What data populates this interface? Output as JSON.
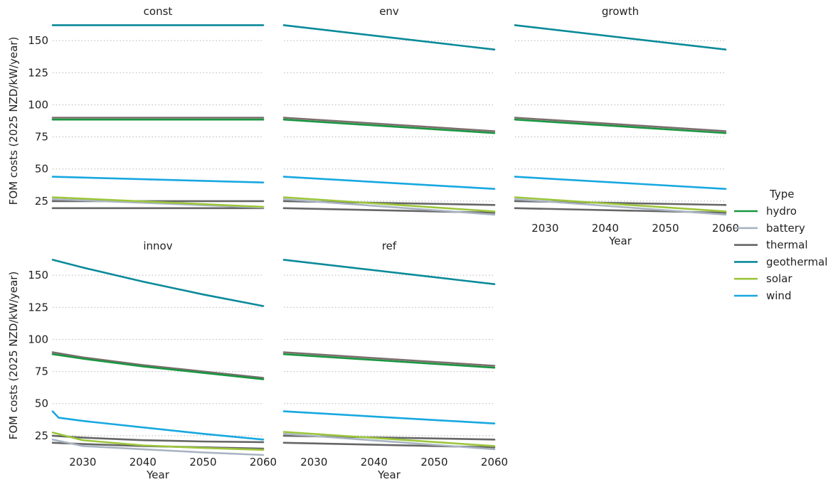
{
  "chart_data": {
    "type": "line",
    "facet_variable": "scenario",
    "ylabel": "FOM costs (2025 NZD/kW/year)",
    "xlabel": "Year",
    "xlim": [
      2025,
      2060
    ],
    "ylim": [
      10,
      165
    ],
    "x_ticks": [
      2030,
      2040,
      2050,
      2060
    ],
    "y_ticks": [
      25,
      50,
      75,
      100,
      125,
      150
    ],
    "grid": "horizontal-dotted",
    "legend": {
      "title": "Type",
      "placement": "right",
      "entries": [
        "hydro",
        "battery",
        "thermal",
        "geothermal",
        "solar",
        "wind"
      ]
    },
    "colors": {
      "hydro": "#1a9641",
      "battery": "#a9b4c2",
      "thermal": "#666666",
      "thermal_high": "#7d6d6d",
      "geothermal": "#0a8a9a",
      "solar": "#9cc63b",
      "wind": "#17a8e0"
    },
    "panels": [
      {
        "title": "const",
        "series": [
          {
            "type": "geothermal",
            "points": [
              [
                2025,
                162
              ],
              [
                2060,
                162
              ]
            ]
          },
          {
            "type": "thermal",
            "color_key": "thermal_high",
            "points": [
              [
                2025,
                90
              ],
              [
                2060,
                90
              ]
            ]
          },
          {
            "type": "hydro",
            "points": [
              [
                2025,
                88.5
              ],
              [
                2060,
                88.5
              ]
            ]
          },
          {
            "type": "wind",
            "points": [
              [
                2025,
                44
              ],
              [
                2060,
                39.5
              ]
            ]
          },
          {
            "type": "battery",
            "points": [
              [
                2025,
                26.5
              ],
              [
                2060,
                20
              ]
            ]
          },
          {
            "type": "thermal",
            "points": [
              [
                2025,
                25
              ],
              [
                2060,
                25
              ]
            ]
          },
          {
            "type": "solar",
            "points": [
              [
                2025,
                28
              ],
              [
                2060,
                20.5
              ]
            ]
          },
          {
            "type": "thermal",
            "points": [
              [
                2025,
                19.5
              ],
              [
                2060,
                19.5
              ]
            ]
          }
        ]
      },
      {
        "title": "env",
        "series": [
          {
            "type": "geothermal",
            "points": [
              [
                2025,
                162
              ],
              [
                2060,
                143
              ]
            ]
          },
          {
            "type": "thermal",
            "color_key": "thermal_high",
            "points": [
              [
                2025,
                90
              ],
              [
                2060,
                79.5
              ]
            ]
          },
          {
            "type": "hydro",
            "points": [
              [
                2025,
                88.5
              ],
              [
                2060,
                78
              ]
            ]
          },
          {
            "type": "wind",
            "points": [
              [
                2025,
                44
              ],
              [
                2060,
                34.5
              ]
            ]
          },
          {
            "type": "battery",
            "points": [
              [
                2025,
                26.5
              ],
              [
                2060,
                14.5
              ]
            ]
          },
          {
            "type": "thermal",
            "points": [
              [
                2025,
                25
              ],
              [
                2060,
                22
              ]
            ]
          },
          {
            "type": "solar",
            "points": [
              [
                2025,
                28
              ],
              [
                2060,
                17
              ]
            ]
          },
          {
            "type": "thermal",
            "points": [
              [
                2025,
                19.5
              ],
              [
                2060,
                16
              ]
            ]
          }
        ]
      },
      {
        "title": "growth",
        "series": [
          {
            "type": "geothermal",
            "points": [
              [
                2025,
                162
              ],
              [
                2060,
                143
              ]
            ]
          },
          {
            "type": "thermal",
            "color_key": "thermal_high",
            "points": [
              [
                2025,
                90
              ],
              [
                2060,
                79.5
              ]
            ]
          },
          {
            "type": "hydro",
            "points": [
              [
                2025,
                88.5
              ],
              [
                2060,
                78
              ]
            ]
          },
          {
            "type": "wind",
            "points": [
              [
                2025,
                44
              ],
              [
                2060,
                34.5
              ]
            ]
          },
          {
            "type": "battery",
            "points": [
              [
                2025,
                26.5
              ],
              [
                2060,
                14.5
              ]
            ]
          },
          {
            "type": "thermal",
            "points": [
              [
                2025,
                25
              ],
              [
                2060,
                22
              ]
            ]
          },
          {
            "type": "solar",
            "points": [
              [
                2025,
                28
              ],
              [
                2060,
                17
              ]
            ]
          },
          {
            "type": "thermal",
            "points": [
              [
                2025,
                19.5
              ],
              [
                2060,
                16
              ]
            ]
          }
        ]
      },
      {
        "title": "innov",
        "series": [
          {
            "type": "geothermal",
            "points": [
              [
                2025,
                162
              ],
              [
                2030,
                156
              ],
              [
                2040,
                145
              ],
              [
                2050,
                135
              ],
              [
                2060,
                126
              ]
            ]
          },
          {
            "type": "thermal",
            "color_key": "thermal_high",
            "points": [
              [
                2025,
                90
              ],
              [
                2030,
                86
              ],
              [
                2040,
                80
              ],
              [
                2050,
                75
              ],
              [
                2060,
                70
              ]
            ]
          },
          {
            "type": "hydro",
            "points": [
              [
                2025,
                88.5
              ],
              [
                2030,
                85
              ],
              [
                2040,
                79
              ],
              [
                2050,
                74
              ],
              [
                2060,
                69
              ]
            ]
          },
          {
            "type": "wind",
            "points": [
              [
                2025,
                44
              ],
              [
                2026,
                39
              ],
              [
                2030,
                36.5
              ],
              [
                2040,
                31.5
              ],
              [
                2050,
                26.5
              ],
              [
                2060,
                22
              ]
            ]
          },
          {
            "type": "battery",
            "points": [
              [
                2025,
                22
              ],
              [
                2030,
                17
              ],
              [
                2040,
                14.5
              ],
              [
                2050,
                12
              ],
              [
                2060,
                10
              ]
            ]
          },
          {
            "type": "thermal",
            "points": [
              [
                2025,
                25
              ],
              [
                2030,
                23.5
              ],
              [
                2040,
                21.5
              ],
              [
                2050,
                20.5
              ],
              [
                2060,
                20
              ]
            ]
          },
          {
            "type": "solar",
            "points": [
              [
                2025,
                27.5
              ],
              [
                2030,
                21.5
              ],
              [
                2040,
                17.5
              ],
              [
                2050,
                15.5
              ],
              [
                2060,
                14
              ]
            ]
          },
          {
            "type": "thermal",
            "points": [
              [
                2025,
                19.5
              ],
              [
                2030,
                18.5
              ],
              [
                2040,
                17
              ],
              [
                2050,
                16
              ],
              [
                2060,
                15
              ]
            ]
          }
        ]
      },
      {
        "title": "ref",
        "series": [
          {
            "type": "geothermal",
            "points": [
              [
                2025,
                162
              ],
              [
                2060,
                143
              ]
            ]
          },
          {
            "type": "thermal",
            "color_key": "thermal_high",
            "points": [
              [
                2025,
                90
              ],
              [
                2060,
                79.5
              ]
            ]
          },
          {
            "type": "hydro",
            "points": [
              [
                2025,
                88.5
              ],
              [
                2060,
                78
              ]
            ]
          },
          {
            "type": "wind",
            "points": [
              [
                2025,
                44
              ],
              [
                2060,
                34.5
              ]
            ]
          },
          {
            "type": "battery",
            "points": [
              [
                2025,
                26.5
              ],
              [
                2060,
                14.5
              ]
            ]
          },
          {
            "type": "thermal",
            "points": [
              [
                2025,
                25
              ],
              [
                2060,
                22
              ]
            ]
          },
          {
            "type": "solar",
            "points": [
              [
                2025,
                28
              ],
              [
                2060,
                17
              ]
            ]
          },
          {
            "type": "thermal",
            "points": [
              [
                2025,
                19.5
              ],
              [
                2060,
                16
              ]
            ]
          }
        ]
      }
    ]
  }
}
